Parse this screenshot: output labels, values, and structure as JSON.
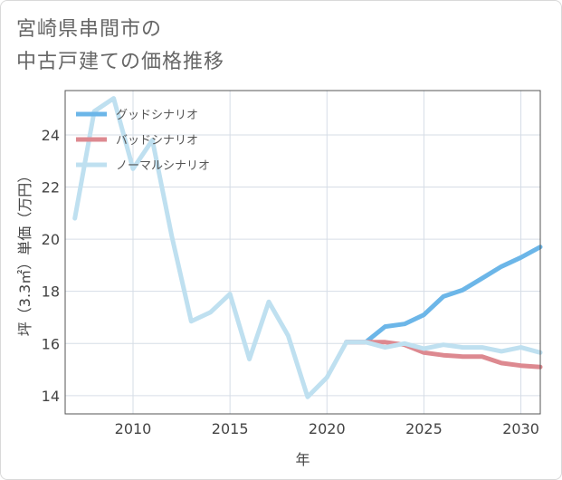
{
  "title_line1": "宮崎県串間市の",
  "title_line2": "中古戸建ての価格推移",
  "chart_data": {
    "type": "line",
    "xlabel": "年",
    "ylabel": "坪（3.3㎡）単価（万円）",
    "xlim": [
      2006.5,
      2031
    ],
    "ylim": [
      13.3,
      25.7
    ],
    "xticks": [
      2010,
      2015,
      2020,
      2025,
      2030
    ],
    "yticks": [
      14,
      16,
      18,
      20,
      22,
      24
    ],
    "grid": true,
    "legend_position": "top-left",
    "series": [
      {
        "name": "グッドシナリオ",
        "color": "#6cb6e8",
        "x": [
          2021,
          2022,
          2023,
          2024,
          2025,
          2026,
          2027,
          2028,
          2029,
          2030,
          2031
        ],
        "values": [
          16.05,
          16.05,
          16.65,
          16.75,
          17.1,
          17.8,
          18.05,
          18.5,
          18.95,
          19.3,
          19.7
        ]
      },
      {
        "name": "バッドシナリオ",
        "color": "#dd8990",
        "x": [
          2021,
          2022,
          2023,
          2024,
          2025,
          2026,
          2027,
          2028,
          2029,
          2030,
          2031
        ],
        "values": [
          16.05,
          16.05,
          16.05,
          15.95,
          15.65,
          15.55,
          15.5,
          15.5,
          15.25,
          15.15,
          15.1
        ]
      },
      {
        "name": "ノーマルシナリオ",
        "color": "#bfe0f0",
        "x": [
          2007,
          2008,
          2009,
          2010,
          2011,
          2012,
          2013,
          2014,
          2015,
          2016,
          2017,
          2018,
          2019,
          2020,
          2021,
          2022,
          2023,
          2024,
          2025,
          2026,
          2027,
          2028,
          2029,
          2030,
          2031
        ],
        "values": [
          20.8,
          24.9,
          25.4,
          22.7,
          23.8,
          20.1,
          16.85,
          17.2,
          17.9,
          15.4,
          17.6,
          16.3,
          13.95,
          14.7,
          16.05,
          16.05,
          15.85,
          16.0,
          15.8,
          15.95,
          15.85,
          15.85,
          15.7,
          15.85,
          15.65
        ]
      }
    ]
  }
}
